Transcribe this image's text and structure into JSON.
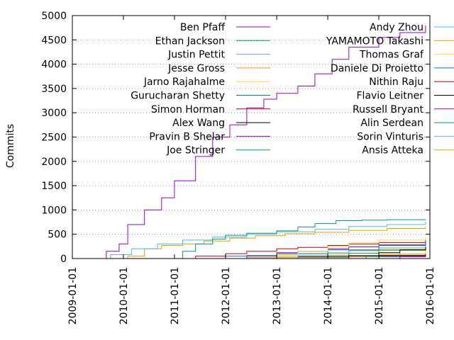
{
  "chart_data": {
    "type": "line",
    "title": "",
    "xlabel": "",
    "ylabel": "Commits",
    "xlim": [
      "2009-01-01",
      "2016-01-01"
    ],
    "ylim": [
      0,
      5000
    ],
    "x_ticks": [
      "2009-01-01",
      "2010-01-01",
      "2011-01-01",
      "2012-01-01",
      "2013-01-01",
      "2014-01-01",
      "2015-01-01",
      "2016-01-01"
    ],
    "y_ticks": [
      "0",
      "500",
      "1000",
      "1500",
      "2000",
      "2500",
      "3000",
      "3500",
      "4000",
      "4500",
      "5000"
    ],
    "grid": "horizontal dotted",
    "legend_position": "top, two columns",
    "series": [
      {
        "name": "Ben Pfaff",
        "color": "#9400d3",
        "points": [
          [
            "2009-07-10",
            0
          ],
          [
            "2009-09-01",
            150
          ],
          [
            "2009-12-01",
            300
          ],
          [
            "2010-02-01",
            700
          ],
          [
            "2010-06-01",
            1000
          ],
          [
            "2010-10-01",
            1250
          ],
          [
            "2011-01-01",
            1600
          ],
          [
            "2011-06-01",
            2100
          ],
          [
            "2011-10-01",
            2500
          ],
          [
            "2012-02-01",
            2750
          ],
          [
            "2012-06-01",
            3100
          ],
          [
            "2012-10-01",
            3280
          ],
          [
            "2013-01-01",
            3400
          ],
          [
            "2013-06-01",
            3550
          ],
          [
            "2013-10-01",
            3800
          ],
          [
            "2014-02-01",
            4100
          ],
          [
            "2014-06-01",
            4350
          ],
          [
            "2015-01-01",
            4550
          ],
          [
            "2015-06-01",
            4650
          ],
          [
            "2015-12-01",
            4800
          ]
        ]
      },
      {
        "name": "Ethan Jackson",
        "color": "#009e73",
        "points": [
          [
            "2010-11-01",
            0
          ],
          [
            "2011-03-01",
            150
          ],
          [
            "2011-06-01",
            300
          ],
          [
            "2011-10-01",
            400
          ],
          [
            "2012-01-01",
            480
          ],
          [
            "2012-06-01",
            520
          ],
          [
            "2013-01-01",
            570
          ],
          [
            "2013-06-01",
            650
          ],
          [
            "2013-10-01",
            720
          ],
          [
            "2014-03-01",
            780
          ],
          [
            "2014-09-01",
            790
          ],
          [
            "2015-03-01",
            800
          ],
          [
            "2015-12-01",
            810
          ]
        ]
      },
      {
        "name": "Justin Pettit",
        "color": "#56b4e9",
        "points": [
          [
            "2009-07-10",
            0
          ],
          [
            "2009-10-01",
            80
          ],
          [
            "2010-03-01",
            200
          ],
          [
            "2010-09-01",
            300
          ],
          [
            "2011-03-01",
            380
          ],
          [
            "2011-10-01",
            440
          ],
          [
            "2012-06-01",
            500
          ],
          [
            "2013-01-01",
            550
          ],
          [
            "2013-10-01",
            600
          ],
          [
            "2014-06-01",
            660
          ],
          [
            "2015-03-01",
            700
          ],
          [
            "2015-12-01",
            760
          ]
        ]
      },
      {
        "name": "Jesse Gross",
        "color": "#e69f00",
        "points": [
          [
            "2009-11-01",
            0
          ],
          [
            "2010-02-01",
            50
          ],
          [
            "2010-06-01",
            200
          ],
          [
            "2010-10-01",
            270
          ],
          [
            "2011-03-01",
            300
          ],
          [
            "2011-08-01",
            360
          ],
          [
            "2012-02-01",
            420
          ],
          [
            "2012-08-01",
            470
          ],
          [
            "2013-03-01",
            510
          ],
          [
            "2013-10-01",
            540
          ],
          [
            "2014-06-01",
            580
          ],
          [
            "2015-03-01",
            620
          ],
          [
            "2015-12-01",
            650
          ]
        ]
      },
      {
        "name": "Jarno Rajahalme",
        "color": "#f0e442",
        "points": [
          [
            "2012-06-01",
            0
          ],
          [
            "2013-01-01",
            80
          ],
          [
            "2013-06-01",
            150
          ],
          [
            "2014-01-01",
            250
          ],
          [
            "2014-06-01",
            330
          ],
          [
            "2015-01-01",
            380
          ],
          [
            "2015-12-01",
            450
          ]
        ]
      },
      {
        "name": "Gurucharan Shetty",
        "color": "#0072b2",
        "points": [
          [
            "2011-01-01",
            0
          ],
          [
            "2012-01-01",
            50
          ],
          [
            "2013-01-01",
            100
          ],
          [
            "2014-01-01",
            180
          ],
          [
            "2015-01-01",
            270
          ],
          [
            "2015-12-01",
            380
          ]
        ]
      },
      {
        "name": "Simon Horman",
        "color": "#c00000",
        "points": [
          [
            "2011-01-01",
            0
          ],
          [
            "2011-06-01",
            50
          ],
          [
            "2012-01-01",
            100
          ],
          [
            "2012-06-01",
            150
          ],
          [
            "2013-01-01",
            200
          ],
          [
            "2013-06-01",
            230
          ],
          [
            "2014-01-01",
            270
          ],
          [
            "2014-06-01",
            300
          ],
          [
            "2015-01-01",
            330
          ],
          [
            "2015-12-01",
            370
          ]
        ]
      },
      {
        "name": "Alex Wang",
        "color": "#000000",
        "points": [
          [
            "2013-10-01",
            0
          ],
          [
            "2014-06-01",
            60
          ],
          [
            "2015-01-01",
            120
          ],
          [
            "2015-06-01",
            180
          ],
          [
            "2015-12-01",
            230
          ]
        ]
      },
      {
        "name": "Pravin B Shelar",
        "color": "#9400d3",
        "points": [
          [
            "2011-10-01",
            0
          ],
          [
            "2012-06-01",
            60
          ],
          [
            "2013-01-01",
            120
          ],
          [
            "2013-06-01",
            150
          ],
          [
            "2014-01-01",
            200
          ],
          [
            "2014-06-01",
            240
          ],
          [
            "2015-01-01",
            280
          ],
          [
            "2015-12-01",
            320
          ]
        ]
      },
      {
        "name": "Joe Stringer",
        "color": "#009e73",
        "points": [
          [
            "2013-03-01",
            0
          ],
          [
            "2014-01-01",
            60
          ],
          [
            "2014-06-01",
            110
          ],
          [
            "2015-01-01",
            170
          ],
          [
            "2015-12-01",
            250
          ]
        ]
      },
      {
        "name": "Andy Zhou",
        "color": "#56b4e9",
        "points": [
          [
            "2012-10-01",
            0
          ],
          [
            "2013-06-01",
            60
          ],
          [
            "2014-01-01",
            120
          ],
          [
            "2014-06-01",
            170
          ],
          [
            "2015-01-01",
            220
          ],
          [
            "2015-12-01",
            280
          ]
        ]
      },
      {
        "name": "YAMAMOTO Takashi",
        "color": "#e69f00",
        "points": [
          [
            "2012-01-01",
            0
          ],
          [
            "2013-01-01",
            50
          ],
          [
            "2014-01-01",
            100
          ],
          [
            "2014-06-01",
            160
          ],
          [
            "2015-01-01",
            190
          ],
          [
            "2015-12-01",
            220
          ]
        ]
      },
      {
        "name": "Thomas Graf",
        "color": "#f0e442",
        "points": [
          [
            "2013-06-01",
            0
          ],
          [
            "2014-06-01",
            50
          ],
          [
            "2015-01-01",
            100
          ],
          [
            "2015-12-01",
            190
          ]
        ]
      },
      {
        "name": "Daniele Di Proietto",
        "color": "#0072b2",
        "points": [
          [
            "2014-03-01",
            0
          ],
          [
            "2014-10-01",
            40
          ],
          [
            "2015-06-01",
            100
          ],
          [
            "2015-12-01",
            150
          ]
        ]
      },
      {
        "name": "Nithin Raju",
        "color": "#c00000",
        "points": [
          [
            "2013-10-01",
            0
          ],
          [
            "2014-06-01",
            40
          ],
          [
            "2015-01-01",
            70
          ],
          [
            "2015-12-01",
            110
          ]
        ]
      },
      {
        "name": "Flavio Leitner",
        "color": "#000000",
        "points": [
          [
            "2012-01-01",
            0
          ],
          [
            "2013-06-01",
            30
          ],
          [
            "2014-06-01",
            60
          ],
          [
            "2015-12-01",
            90
          ]
        ]
      },
      {
        "name": "Russell Bryant",
        "color": "#9400d3",
        "points": [
          [
            "2015-01-01",
            0
          ],
          [
            "2015-06-01",
            40
          ],
          [
            "2015-12-01",
            80
          ]
        ]
      },
      {
        "name": "Alin Serdean",
        "color": "#009e73",
        "points": [
          [
            "2014-06-01",
            0
          ],
          [
            "2015-01-01",
            40
          ],
          [
            "2015-12-01",
            80
          ]
        ]
      },
      {
        "name": "Sorin Vinturis",
        "color": "#56b4e9",
        "points": [
          [
            "2014-09-01",
            0
          ],
          [
            "2015-06-01",
            40
          ],
          [
            "2015-12-01",
            70
          ]
        ]
      },
      {
        "name": "Ansis Atteka",
        "color": "#e69f00",
        "points": [
          [
            "2011-06-01",
            0
          ],
          [
            "2012-06-01",
            20
          ],
          [
            "2013-06-01",
            40
          ],
          [
            "2014-06-01",
            55
          ],
          [
            "2015-12-01",
            70
          ]
        ]
      }
    ]
  }
}
